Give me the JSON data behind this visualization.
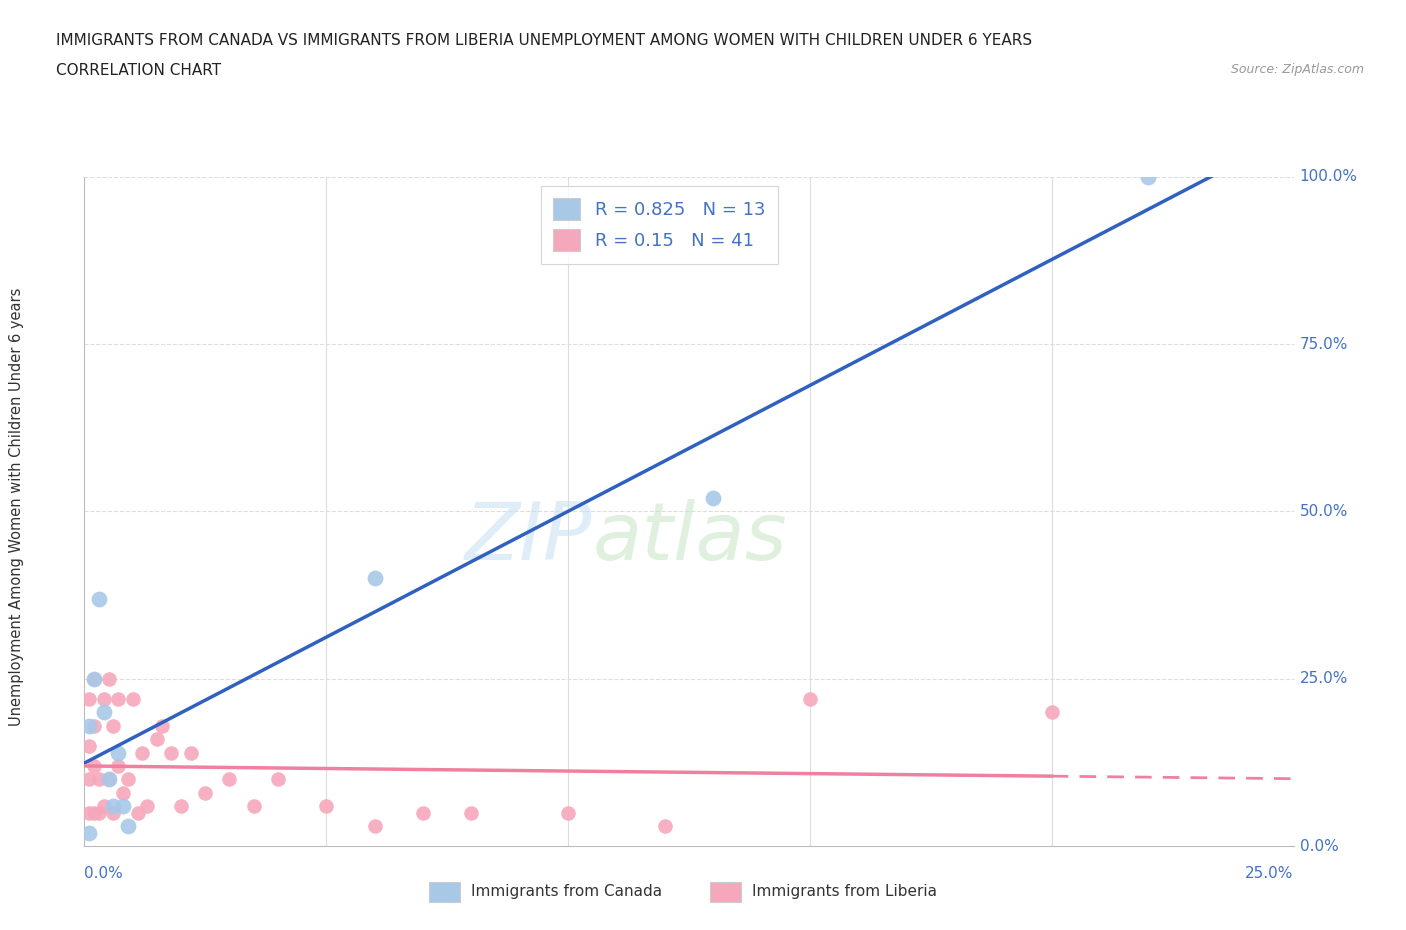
{
  "title_line1": "IMMIGRANTS FROM CANADA VS IMMIGRANTS FROM LIBERIA UNEMPLOYMENT AMONG WOMEN WITH CHILDREN UNDER 6 YEARS",
  "title_line2": "CORRELATION CHART",
  "source": "Source: ZipAtlas.com",
  "legend_label_canada": "Immigrants from Canada",
  "legend_label_liberia": "Immigrants from Liberia",
  "R_canada": 0.825,
  "N_canada": 13,
  "R_liberia": 0.15,
  "N_liberia": 41,
  "canada_color": "#a8c8e8",
  "liberia_color": "#f5a8bc",
  "canada_line_color": "#3060c0",
  "liberia_line_color": "#f080a0",
  "canada_x": [
    0.001,
    0.001,
    0.002,
    0.003,
    0.004,
    0.005,
    0.006,
    0.007,
    0.008,
    0.009,
    0.06,
    0.13,
    0.22
  ],
  "canada_y": [
    0.02,
    0.18,
    0.25,
    0.37,
    0.2,
    0.1,
    0.06,
    0.14,
    0.06,
    0.03,
    0.4,
    0.52,
    1.0
  ],
  "liberia_x": [
    0.001,
    0.001,
    0.001,
    0.001,
    0.002,
    0.002,
    0.002,
    0.002,
    0.003,
    0.003,
    0.004,
    0.004,
    0.005,
    0.005,
    0.006,
    0.006,
    0.007,
    0.007,
    0.008,
    0.009,
    0.01,
    0.011,
    0.012,
    0.013,
    0.015,
    0.016,
    0.018,
    0.02,
    0.022,
    0.025,
    0.03,
    0.035,
    0.04,
    0.05,
    0.06,
    0.07,
    0.08,
    0.1,
    0.12,
    0.15,
    0.2
  ],
  "liberia_y": [
    0.05,
    0.1,
    0.15,
    0.22,
    0.05,
    0.12,
    0.18,
    0.25,
    0.05,
    0.1,
    0.22,
    0.06,
    0.1,
    0.25,
    0.05,
    0.18,
    0.12,
    0.22,
    0.08,
    0.1,
    0.22,
    0.05,
    0.14,
    0.06,
    0.16,
    0.18,
    0.14,
    0.06,
    0.14,
    0.08,
    0.1,
    0.06,
    0.1,
    0.06,
    0.03,
    0.05,
    0.05,
    0.05,
    0.03,
    0.22,
    0.2
  ],
  "xmin": 0.0,
  "xmax": 0.25,
  "ymin": 0.0,
  "ymax": 1.0,
  "bg_color": "#ffffff",
  "grid_color": "#dddddd",
  "title_color": "#222222",
  "axis_label_color": "#4472c4",
  "ytick_vals": [
    0.0,
    0.25,
    0.5,
    0.75,
    1.0
  ],
  "ytick_labels": [
    "0.0%",
    "25.0%",
    "50.0%",
    "75.0%",
    "100.0%"
  ],
  "xtick_labels_left": "0.0%",
  "xtick_labels_right": "25.0%"
}
